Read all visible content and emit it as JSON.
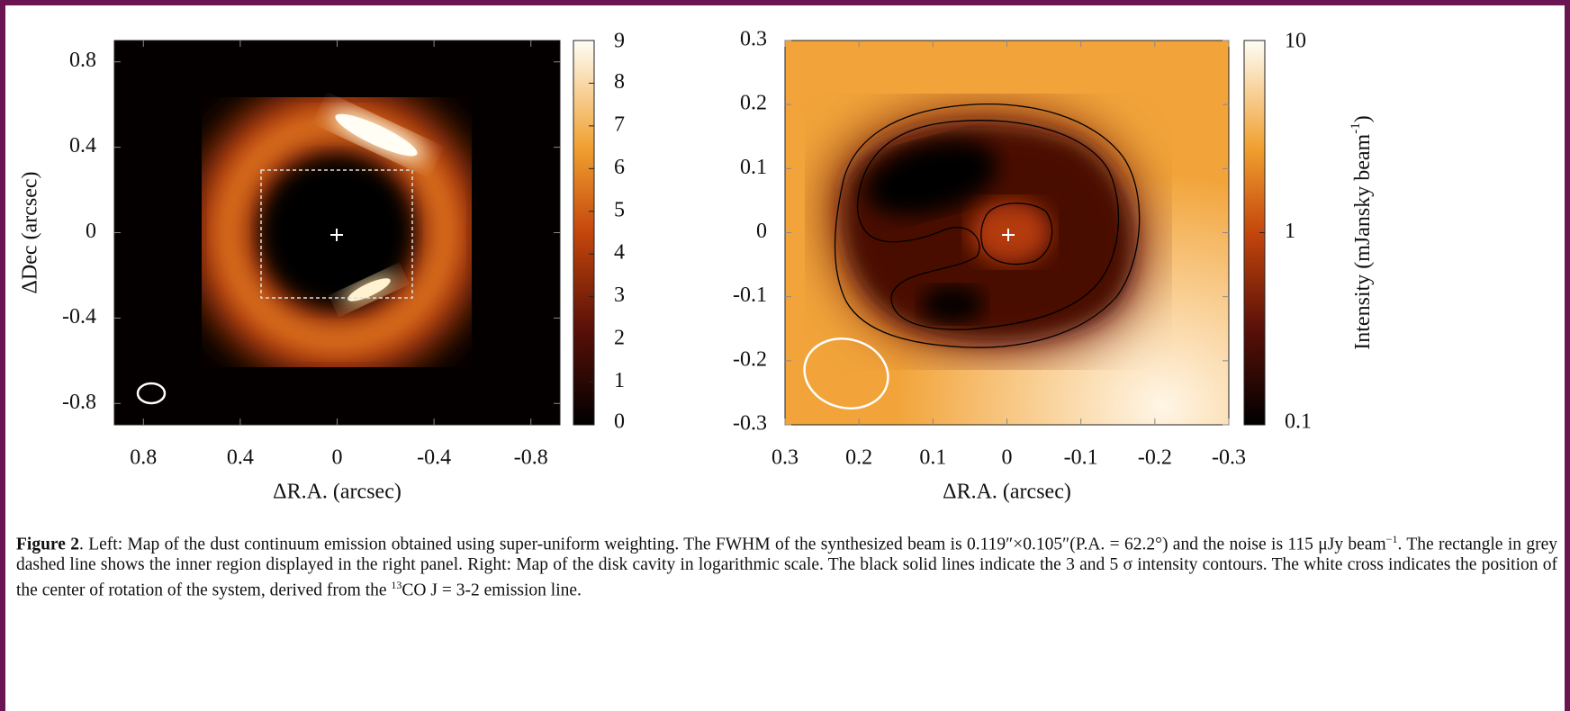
{
  "chart_data": [
    {
      "type": "heatmap",
      "xlim": [
        0.92,
        -0.92
      ],
      "ylim": [
        -0.9,
        0.9
      ],
      "xticks": [
        0.8,
        0.4,
        0,
        -0.4,
        -0.8
      ],
      "yticks": [
        -0.8,
        -0.4,
        0,
        0.4,
        0.8
      ],
      "xlabel": "ΔR.A. (arcsec)",
      "ylabel": "ΔDec (arcsec)",
      "colorbar": {
        "lim": [
          0,
          9
        ],
        "ticks": [
          0,
          1,
          2,
          3,
          4,
          5,
          6,
          7,
          8,
          9
        ],
        "log": false
      }
    },
    {
      "type": "heatmap",
      "xlim": [
        0.3,
        -0.3
      ],
      "ylim": [
        -0.3,
        0.3
      ],
      "xticks": [
        0.3,
        0.2,
        0.1,
        0,
        -0.1,
        -0.2,
        -0.3
      ],
      "yticks": [
        -0.3,
        -0.2,
        -0.1,
        0,
        0.1,
        0.2,
        0.3
      ],
      "xlabel": "ΔR.A. (arcsec)",
      "colorbar": {
        "lim": [
          0.1,
          10
        ],
        "ticks": [
          0.1,
          1,
          10
        ],
        "log": true,
        "label": [
          "Intensity (mJansky beam",
          "-1",
          ")"
        ]
      }
    }
  ],
  "caption": {
    "label": "Figure 2",
    "parts": [
      ". Left: Map of the dust continuum emission obtained using super-uniform weighting. The FWHM of the synthesized beam is 0.119″×0.105″(P.A. = 62.2°) and the noise is 115 μJy beam",
      "−1",
      ". The rectangle in grey dashed line shows the inner region displayed in the right panel. Right: Map of the disk cavity in logarithmic scale. The black solid lines indicate the 3 and 5 σ intensity contours. The white cross indicates the position of the center of rotation of the system, derived from the ",
      "13",
      "CO J = 3-2 emission line."
    ]
  }
}
